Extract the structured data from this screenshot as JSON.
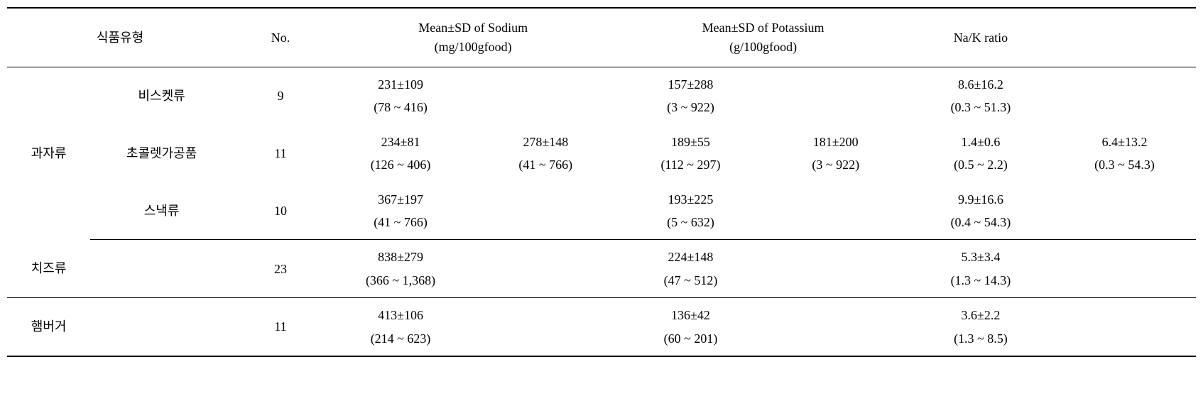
{
  "headers": {
    "category": "식품유형",
    "no": "No.",
    "sodium": "Mean±SD of Sodium\n(mg/100gfood)",
    "potassium": "Mean±SD of Potassium\n(g/100gfood)",
    "ratio": "Na/K ratio"
  },
  "rows": {
    "r1": {
      "category": "과자류",
      "sub": "비스켓류",
      "no": "9",
      "sodium1_mean": "231±109",
      "sodium1_range": "(78 ~ 416)",
      "sodium2_mean": "",
      "sodium2_range": "",
      "pot1_mean": "157±288",
      "pot1_range": "(3 ~ 922)",
      "pot2_mean": "",
      "pot2_range": "",
      "ratio1_mean": "8.6±16.2",
      "ratio1_range": "(0.3 ~ 51.3)",
      "ratio2_mean": "",
      "ratio2_range": ""
    },
    "r2": {
      "sub": "초콜렛가공품",
      "no": "11",
      "sodium1_mean": "234±81",
      "sodium1_range": "(126 ~ 406)",
      "sodium2_mean": "278±148",
      "sodium2_range": "(41 ~ 766)",
      "pot1_mean": "189±55",
      "pot1_range": "(112 ~ 297)",
      "pot2_mean": "181±200",
      "pot2_range": "(3 ~ 922)",
      "ratio1_mean": "1.4±0.6",
      "ratio1_range": "(0.5 ~ 2.2)",
      "ratio2_mean": "6.4±13.2",
      "ratio2_range": "(0.3 ~ 54.3)"
    },
    "r3": {
      "sub": "스낵류",
      "no": "10",
      "sodium1_mean": "367±197",
      "sodium1_range": "(41 ~ 766)",
      "sodium2_mean": "",
      "sodium2_range": "",
      "pot1_mean": "193±225",
      "pot1_range": "(5 ~ 632)",
      "pot2_mean": "",
      "pot2_range": "",
      "ratio1_mean": "9.9±16.6",
      "ratio1_range": "(0.4 ~ 54.3)",
      "ratio2_mean": "",
      "ratio2_range": ""
    },
    "r4": {
      "category": "치즈류",
      "no": "23",
      "sodium1_mean": "838±279",
      "sodium1_range": "(366 ~ 1,368)",
      "pot1_mean": "224±148",
      "pot1_range": "(47 ~ 512)",
      "ratio1_mean": "5.3±3.4",
      "ratio1_range": "(1.3 ~ 14.3)"
    },
    "r5": {
      "category": "햄버거",
      "no": "11",
      "sodium1_mean": "413±106",
      "sodium1_range": "(214 ~ 623)",
      "pot1_mean": "136±42",
      "pot1_range": "(60 ~ 201)",
      "ratio1_mean": "3.6±2.2",
      "ratio1_range": "(1.3 ~ 8.5)"
    }
  }
}
